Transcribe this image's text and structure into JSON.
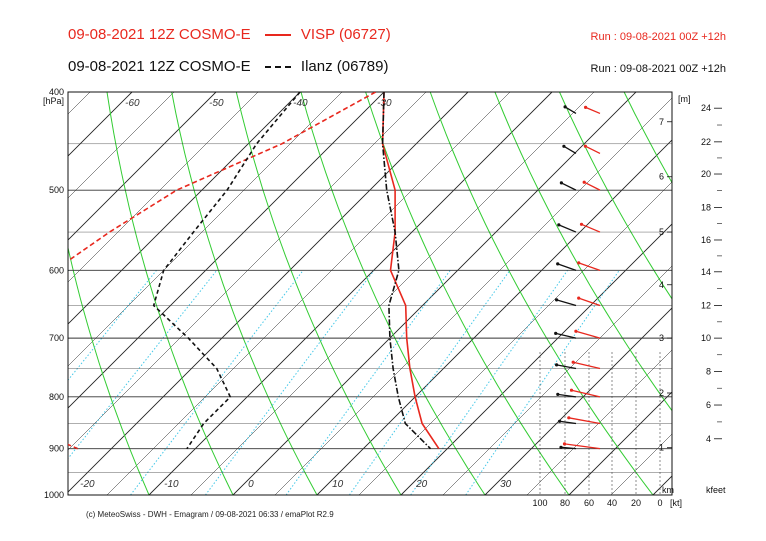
{
  "header": {
    "line1_title": "09-08-2021 12Z COSMO-E",
    "line1_station": "VISP (06727)",
    "line1_run": "Run : 09-08-2021 00Z +12h",
    "line2_title": "09-08-2021 12Z COSMO-E",
    "line2_station": "Ilanz (06789)",
    "line2_run": "Run : 09-08-2021 00Z +12h"
  },
  "footer": "(c) MeteoSwiss - DWH - Emagram / 09-08-2021 06:33 / emaPlot R2.9",
  "colors": {
    "visp": "#e8281e",
    "ilanz": "#111111",
    "dry_adiabat": "#33cc33",
    "mixing_ratio": "#44c8e8",
    "isotherm": "#222222"
  },
  "chart_data": {
    "type": "line",
    "y_axis_label": "[hPa]",
    "pressure_ticks": [
      400,
      500,
      600,
      700,
      800,
      900,
      1000
    ],
    "ylim": [
      1000,
      400
    ],
    "temperature_labels": [
      "-60",
      "-50",
      "-40",
      "-30",
      "-20",
      "-10",
      "0",
      "10",
      "20",
      "30"
    ],
    "height_m_label": "[m]",
    "height_km_ticks": [
      "1",
      "2",
      "3",
      "4",
      "5",
      "6",
      "7"
    ],
    "height_km_label": "km",
    "height_kfeet_label": "kfeet",
    "height_kfeet_ticks": [
      "4",
      "6",
      "8",
      "10",
      "12",
      "14",
      "16",
      "18",
      "20",
      "22",
      "24"
    ],
    "wind_speed_ticks": [
      "100",
      "80",
      "60",
      "40",
      "20",
      "0"
    ],
    "wind_speed_unit": "[kt]",
    "series": [
      {
        "name": "VISP (06727)",
        "temperature": [
          [
            400,
            -30
          ],
          [
            450,
            -24
          ],
          [
            500,
            -17
          ],
          [
            550,
            -12
          ],
          [
            600,
            -8
          ],
          [
            650,
            -2
          ],
          [
            700,
            2
          ],
          [
            750,
            6
          ],
          [
            800,
            10
          ],
          [
            850,
            14
          ],
          [
            900,
            19
          ]
        ],
        "dewpoint": [
          [
            400,
            -31
          ],
          [
            450,
            -36
          ],
          [
            500,
            -43
          ],
          [
            550,
            -46
          ],
          [
            600,
            -48
          ],
          [
            650,
            -45
          ],
          [
            700,
            -43
          ],
          [
            750,
            -37
          ],
          [
            800,
            -35
          ],
          [
            850,
            -34
          ],
          [
            900,
            -24
          ]
        ]
      },
      {
        "name": "Ilanz (06789)",
        "temperature": [
          [
            400,
            -30
          ],
          [
            450,
            -24
          ],
          [
            500,
            -18
          ],
          [
            550,
            -12
          ],
          [
            600,
            -7
          ],
          [
            650,
            -4
          ],
          [
            700,
            0
          ],
          [
            750,
            4
          ],
          [
            800,
            8
          ],
          [
            850,
            12
          ],
          [
            900,
            18
          ]
        ],
        "dewpoint": [
          [
            400,
            -40
          ],
          [
            450,
            -39
          ],
          [
            500,
            -37
          ],
          [
            550,
            -36
          ],
          [
            600,
            -35
          ],
          [
            650,
            -32
          ],
          [
            700,
            -24
          ],
          [
            750,
            -17
          ],
          [
            800,
            -12
          ],
          [
            850,
            -12
          ],
          [
            900,
            -11
          ]
        ]
      }
    ],
    "wind_profiles": [
      {
        "name": "VISP (06727)",
        "points": [
          [
            420,
            12,
            230
          ],
          [
            460,
            14,
            225
          ],
          [
            500,
            16,
            225
          ],
          [
            550,
            18,
            230
          ],
          [
            600,
            20,
            235
          ],
          [
            650,
            20,
            235
          ],
          [
            700,
            22,
            240
          ],
          [
            750,
            24,
            245
          ],
          [
            800,
            26,
            245
          ],
          [
            850,
            28,
            250
          ],
          [
            900,
            32,
            255
          ]
        ]
      },
      {
        "name": "Ilanz (06789)",
        "points": [
          [
            420,
            10,
            220
          ],
          [
            460,
            12,
            220
          ],
          [
            500,
            14,
            225
          ],
          [
            550,
            16,
            230
          ],
          [
            600,
            16,
            235
          ],
          [
            650,
            16,
            240
          ],
          [
            700,
            16,
            245
          ],
          [
            750,
            14,
            250
          ],
          [
            800,
            12,
            255
          ],
          [
            850,
            10,
            255
          ],
          [
            900,
            8,
            260
          ]
        ]
      }
    ]
  }
}
